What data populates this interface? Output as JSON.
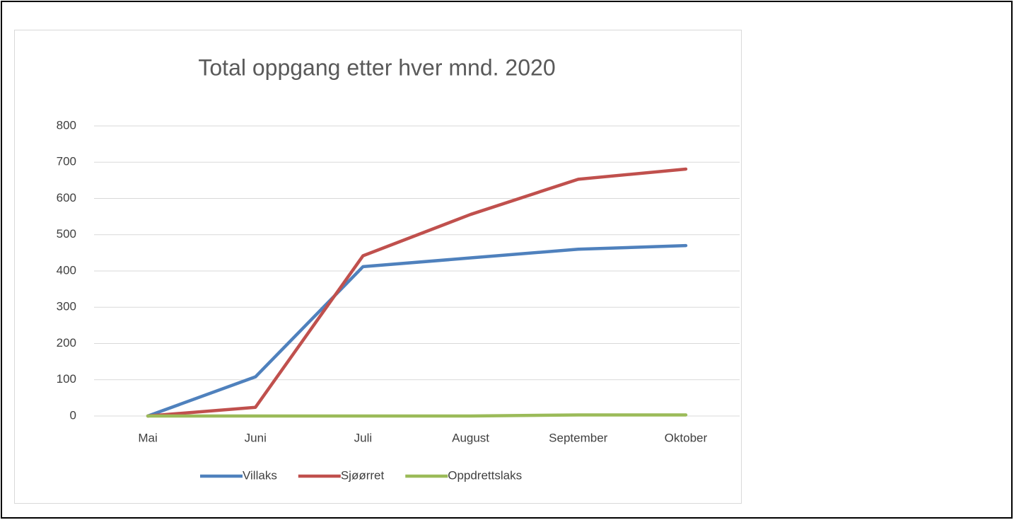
{
  "chart_data": {
    "type": "line",
    "title": "Total oppgang etter hver mnd. 2020",
    "categories": [
      "Mai",
      "Juni",
      "Juli",
      "August",
      "September",
      "Oktober"
    ],
    "series": [
      {
        "name": "Villaks",
        "color": "#4f81bd",
        "values": [
          0,
          108,
          412,
          436,
          460,
          470
        ]
      },
      {
        "name": "Sjøørret",
        "color": "#c0504d",
        "values": [
          0,
          24,
          442,
          556,
          653,
          681
        ]
      },
      {
        "name": "Oppdrettslaks",
        "color": "#9bbb59",
        "values": [
          0,
          0,
          0,
          0,
          3,
          3
        ]
      }
    ],
    "ylim": [
      0,
      800
    ],
    "yticks": [
      0,
      100,
      200,
      300,
      400,
      500,
      600,
      700,
      800
    ],
    "grid": true,
    "legend": "bottom"
  }
}
